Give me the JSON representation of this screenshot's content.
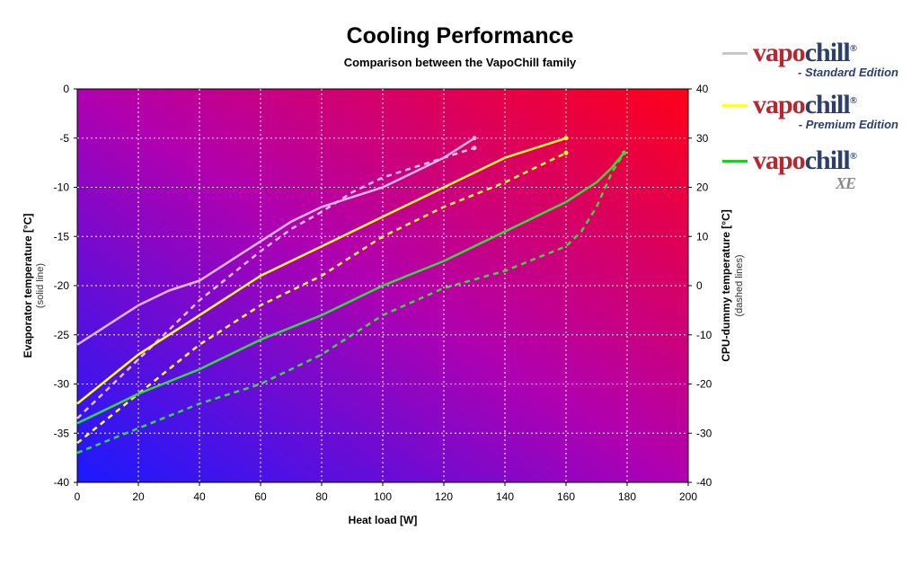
{
  "title": "Cooling Performance",
  "subtitle": "Comparison between the VapoChill family",
  "legend": [
    {
      "brand_left": "vapo",
      "brand_right": "chill",
      "registered": "®",
      "edition": "- Standard Edition",
      "color": "#c8c8c8"
    },
    {
      "brand_left": "vapo",
      "brand_right": "chill",
      "registered": "®",
      "edition": "- Premium Edition",
      "color": "#ffff33"
    },
    {
      "brand_left": "vapo",
      "brand_right": "chill",
      "registered": "®",
      "edition": "XE",
      "color": "#22cc22"
    }
  ],
  "chart_data": {
    "type": "line",
    "title": "Cooling Performance",
    "subtitle": "Comparison between the VapoChill family",
    "xlabel": "Heat load [W]",
    "ylabel_left": "Evaporator temperature [°C]",
    "ylabel_left_sub": "(solid line)",
    "ylabel_right": "CPU-dummy temperature [°C]",
    "ylabel_right_sub": "(dashed lines)",
    "xlim": [
      0,
      200
    ],
    "ylim_left": [
      -40,
      0
    ],
    "ylim_right": [
      -40,
      40
    ],
    "x_ticks": [
      0,
      20,
      40,
      60,
      80,
      100,
      120,
      140,
      160,
      180,
      200
    ],
    "y_left_ticks": [
      0,
      -5,
      -10,
      -15,
      -20,
      -25,
      -30,
      -35,
      -40
    ],
    "y_right_ticks": [
      40,
      30,
      20,
      10,
      0,
      -10,
      -20,
      -30,
      -40
    ],
    "grid": true,
    "background_gradient": {
      "from": "#1a1aff",
      "mid": "#b000b0",
      "to": "#ff0018"
    },
    "series": [
      {
        "color": "#e0b8e8",
        "style": "solid",
        "axis": "left",
        "x": [
          0,
          10,
          20,
          30,
          40,
          50,
          60,
          70,
          80,
          90,
          100,
          110,
          120,
          130
        ],
        "y": [
          -26,
          -24,
          -22,
          -20.5,
          -19.5,
          -17.5,
          -15.5,
          -13.5,
          -12,
          -11,
          -10,
          -8.5,
          -7,
          -5
        ]
      },
      {
        "color": "#e8c0ec",
        "style": "dashed",
        "axis": "right",
        "x": [
          0,
          10,
          20,
          30,
          40,
          50,
          60,
          70,
          80,
          90,
          100,
          110,
          120,
          130
        ],
        "y": [
          -27,
          -21,
          -15,
          -9,
          -3,
          2,
          7,
          11.5,
          15,
          19,
          22,
          24,
          26,
          28
        ]
      },
      {
        "color": "#ffff33",
        "style": "solid",
        "axis": "left",
        "x": [
          0,
          10,
          20,
          30,
          40,
          50,
          60,
          70,
          80,
          90,
          100,
          110,
          120,
          130,
          140,
          150,
          160
        ],
        "y": [
          -32,
          -29.5,
          -27,
          -25,
          -23,
          -21,
          -19,
          -17.5,
          -16,
          -14.5,
          -13,
          -11.5,
          -10,
          -8.5,
          -7,
          -6,
          -5
        ]
      },
      {
        "color": "#ffff33",
        "style": "dashed",
        "axis": "right",
        "x": [
          0,
          20,
          40,
          60,
          80,
          100,
          120,
          140,
          160
        ],
        "y": [
          -32,
          -22,
          -12,
          -4,
          2,
          10,
          16,
          21,
          27
        ]
      },
      {
        "color": "#33dd33",
        "style": "solid",
        "axis": "left",
        "x": [
          0,
          20,
          40,
          60,
          80,
          100,
          120,
          140,
          160,
          170,
          175,
          179
        ],
        "y": [
          -34,
          -31,
          -28.5,
          -25.5,
          -23,
          -20,
          -17.5,
          -14.5,
          -11.5,
          -9.5,
          -8,
          -6.5
        ]
      },
      {
        "color": "#33dd33",
        "style": "dashed",
        "axis": "right",
        "x": [
          0,
          20,
          40,
          60,
          80,
          100,
          120,
          140,
          160,
          165,
          170,
          175,
          179
        ],
        "y": [
          -34,
          -29,
          -24,
          -20,
          -14,
          -6,
          -0.5,
          3,
          8,
          11,
          16,
          23,
          27
        ]
      }
    ]
  }
}
